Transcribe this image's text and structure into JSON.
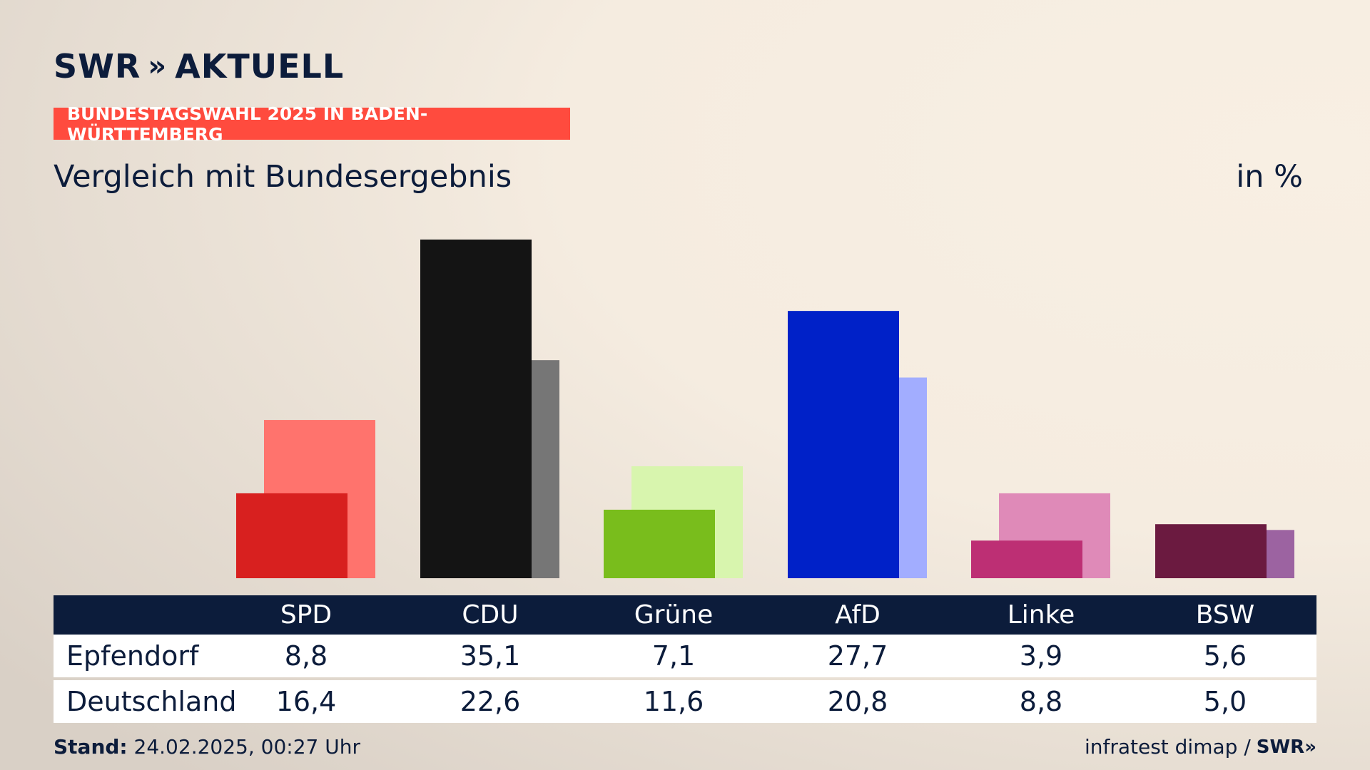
{
  "brand": {
    "logo_text": "SWR",
    "logo_suffix": "AKTUELL",
    "logo_chevrons": "»"
  },
  "banner": "BUNDESTAGSWAHL 2025 IN BADEN-WÜRTTEMBERG",
  "subtitle": "Vergleich mit Bundesergebnis",
  "unit": "in %",
  "chart_data": {
    "type": "bar",
    "title": "Vergleich mit Bundesergebnis",
    "ylabel": "in %",
    "categories": [
      "SPD",
      "CDU",
      "Grüne",
      "AfD",
      "Linke",
      "BSW"
    ],
    "series": [
      {
        "name": "Epfendorf",
        "values": [
          8.8,
          35.1,
          7.1,
          27.7,
          3.9,
          5.6
        ],
        "colors": [
          "#d8201f",
          "#141414",
          "#79bd1c",
          "#0021c8",
          "#bd2f74",
          "#6b1a40"
        ]
      },
      {
        "name": "Deutschland",
        "values": [
          16.4,
          22.6,
          11.6,
          20.8,
          8.8,
          5.0
        ],
        "colors": [
          "#ff736d",
          "#767676",
          "#d8f5ae",
          "#a2adff",
          "#df8ab8",
          "#9c63a1"
        ]
      }
    ],
    "ylim": [
      0,
      35.1
    ]
  },
  "table": {
    "rows": [
      {
        "label": "Epfendorf",
        "values": [
          "8,8",
          "35,1",
          "7,1",
          "27,7",
          "3,9",
          "5,6"
        ]
      },
      {
        "label": "Deutschland",
        "values": [
          "16,4",
          "22,6",
          "11,6",
          "20,8",
          "8,8",
          "5,0"
        ]
      }
    ]
  },
  "footer": {
    "stand_label": "Stand:",
    "stand_value": "24.02.2025, 00:27 Uhr",
    "source": "infratest dimap /",
    "source_logo": "SWR",
    "source_logo_chevrons": "»"
  }
}
